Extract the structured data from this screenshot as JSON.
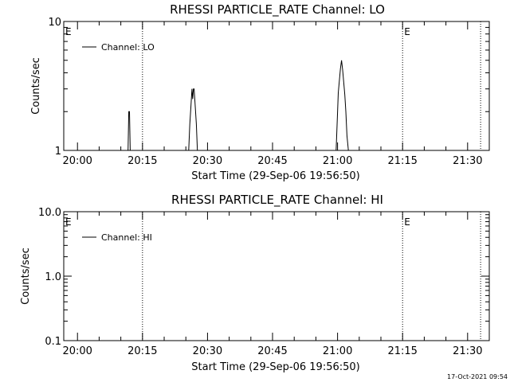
{
  "chart_data": [
    {
      "type": "line",
      "title": "RHESSI PARTICLE_RATE Channel: LO",
      "xlabel": "Start Time (29-Sep-06 19:56:50)",
      "ylabel": "Counts/sec",
      "yscale": "log",
      "ylim": [
        1,
        10
      ],
      "xlim": [
        "19:56:50",
        "21:35:00"
      ],
      "x_tick_labels": [
        "20:00",
        "20:15",
        "20:30",
        "20:45",
        "21:00",
        "21:15",
        "21:30"
      ],
      "y_tick_labels": [
        "1",
        "10"
      ],
      "legend": {
        "entries": [
          "Channel: LO"
        ],
        "position": "top-left"
      },
      "event_flags": [
        {
          "label": "E",
          "time": "19:56:50"
        },
        {
          "label": "E",
          "time": "21:15:00"
        }
      ],
      "markers": [
        "20:15:00",
        "21:15:00",
        "21:33:00"
      ],
      "grid": false,
      "series": [
        {
          "name": "Channel: LO",
          "x": [
            "19:56:50",
            "20:11:40",
            "20:11:50",
            "20:12:00",
            "20:12:10",
            "20:12:20",
            "20:25:40",
            "20:25:55",
            "20:26:10",
            "20:26:25",
            "20:26:35",
            "20:26:45",
            "20:26:55",
            "20:27:10",
            "20:27:25",
            "20:27:40",
            "20:27:55",
            "20:59:40",
            "20:59:55",
            "21:00:10",
            "21:00:25",
            "21:00:40",
            "21:00:55",
            "21:01:10",
            "21:01:25",
            "21:01:40",
            "21:01:55",
            "21:02:10",
            "21:02:30",
            "21:33:00"
          ],
          "values": [
            1,
            1,
            2,
            2,
            1,
            1,
            1,
            1.6,
            2.2,
            3,
            2.5,
            3,
            3,
            2.2,
            1.6,
            1,
            1,
            1,
            1.7,
            2.8,
            3.5,
            4.3,
            5,
            4.2,
            3.4,
            2.7,
            2,
            1.3,
            1,
            1
          ]
        }
      ]
    },
    {
      "type": "line",
      "title": "RHESSI PARTICLE_RATE Channel: HI",
      "xlabel": "Start Time (29-Sep-06 19:56:50)",
      "ylabel": "Counts/sec",
      "yscale": "log",
      "ylim": [
        0.1,
        10
      ],
      "xlim": [
        "19:56:50",
        "21:35:00"
      ],
      "x_tick_labels": [
        "20:00",
        "20:15",
        "20:30",
        "20:45",
        "21:00",
        "21:15",
        "21:30"
      ],
      "y_tick_labels": [
        "0.1",
        "1.0",
        "10.0"
      ],
      "legend": {
        "entries": [
          "Channel: HI"
        ],
        "position": "top-left"
      },
      "event_flags": [
        {
          "label": "E",
          "time": "19:56:50"
        },
        {
          "label": "E",
          "time": "21:15:00"
        }
      ],
      "markers": [
        "20:15:00",
        "21:15:00",
        "21:33:00"
      ],
      "grid": false,
      "series": [
        {
          "name": "Channel: HI",
          "x": [],
          "values": []
        }
      ]
    }
  ],
  "footer": {
    "timestamp": "17-Oct-2021 09:54"
  }
}
